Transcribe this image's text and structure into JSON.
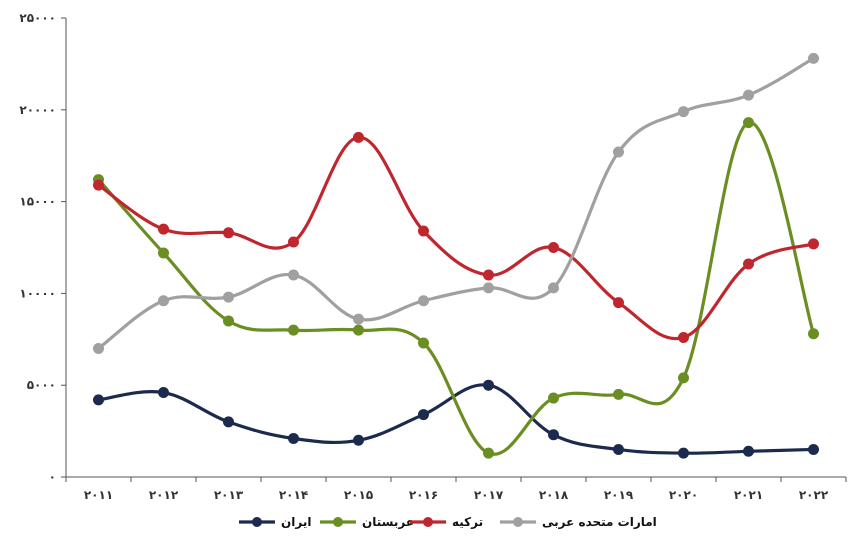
{
  "chart_data": {
    "type": "line",
    "title": "",
    "xlabel": "",
    "ylabel": "",
    "x": [
      "۲۰۱۱",
      "۲۰۱۲",
      "۲۰۱۳",
      "۲۰۱۴",
      "۲۰۱۵",
      "۲۰۱۶",
      "۲۰۱۷",
      "۲۰۱۸",
      "۲۰۱۹",
      "۲۰۲۰",
      "۲۰۲۱",
      "۲۰۲۲"
    ],
    "ylim": [
      0,
      25000
    ],
    "yticks": [
      0,
      5000,
      10000,
      15000,
      20000,
      25000
    ],
    "ytick_labels": [
      "۰",
      "۵۰۰۰",
      "۱۰۰۰۰",
      "۱۵۰۰۰",
      "۲۰۰۰۰",
      "۲۵۰۰۰"
    ],
    "grid": false,
    "legend_position": "bottom",
    "series": [
      {
        "name": "ایران",
        "color": "#1c2b4d",
        "values": [
          4200,
          4600,
          3000,
          2100,
          2000,
          3400,
          5000,
          2300,
          1500,
          1300,
          1400,
          1500
        ]
      },
      {
        "name": "عربستان",
        "color": "#6b8e23",
        "values": [
          16200,
          12200,
          8500,
          8000,
          8000,
          7300,
          1300,
          4300,
          4500,
          5400,
          19300,
          7800
        ]
      },
      {
        "name": "ترکیه",
        "color": "#c0262d",
        "values": [
          15900,
          13500,
          13300,
          12800,
          18500,
          13400,
          11000,
          12500,
          9500,
          7600,
          11600,
          12700
        ]
      },
      {
        "name": "امارات متحده عربی",
        "color": "#a0a0a0",
        "values": [
          7000,
          9600,
          9800,
          11000,
          8600,
          9600,
          10300,
          10300,
          17700,
          19900,
          20800,
          22800
        ]
      }
    ]
  }
}
